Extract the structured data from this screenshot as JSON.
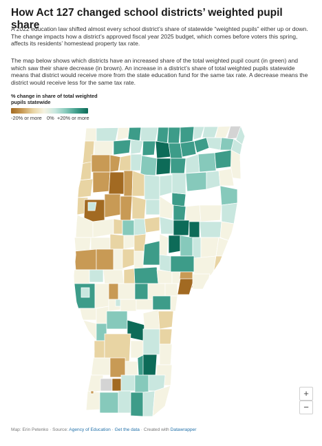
{
  "title": "How Act 127 changed school districts’ weighted pupil share",
  "intro": "A 2022 education law shifted almost every school district’s share of statewide “weighted pupils” either up or down. The change impacts how a district’s approved fiscal year 2025 budget, which comes before voters this spring, affects its residents’ homestead property tax rate.",
  "description": "The map below shows which districts have an increased share of the total weighted pupil count (in green) and which saw their share decrease (in brown). An increase in a district’s share of total weighted pupils statewide means that district would receive more from the state education fund for the same tax rate. A decrease means the district would receive less for the same tax rate.",
  "legend": {
    "title": "% change in share of total weighted pupils statewide",
    "labels": {
      "low": "-20% or more",
      "mid": "0%",
      "high": "+20% or more"
    },
    "colors": [
      "#a26a22",
      "#c89a55",
      "#e8d4a3",
      "#f5f3e2",
      "#c9e7df",
      "#86c9bb",
      "#3d9c89",
      "#0d6b58"
    ]
  },
  "controls": {
    "zoom_in": "+",
    "zoom_out": "−"
  },
  "footer": {
    "prefix": "Map: Erin Petenko · Source: ",
    "source_link": "Agency of Education",
    "sep1": " · ",
    "data_link": "Get the data",
    "sep2": " · Created with ",
    "tool_link": "Datawrapper"
  },
  "map_data": {
    "region": "Vermont school districts",
    "fill_colors": {
      "dark_brown": "#a26a22",
      "brown": "#c89a55",
      "tan": "#e8d4a3",
      "neutral": "#f5f3e2",
      "light_green": "#c9e7df",
      "green": "#86c9bb",
      "teal": "#3d9c89",
      "dark_teal": "#0d6b58",
      "no_data": "#d4d4d4"
    }
  }
}
